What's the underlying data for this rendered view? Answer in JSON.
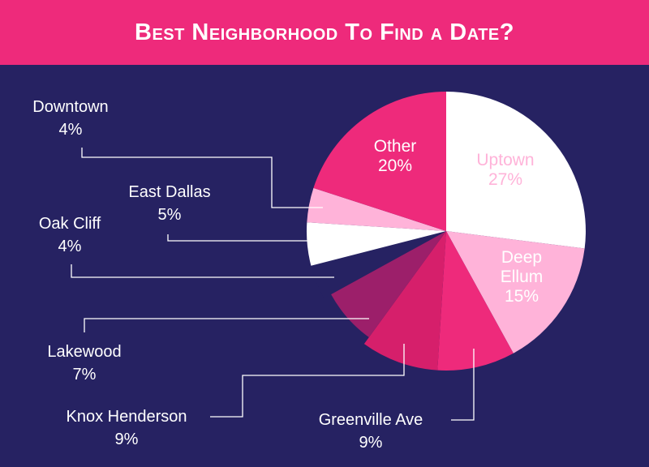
{
  "title": "Best Neighborhood To Find a Date?",
  "chart_data": {
    "type": "pie",
    "title": "Best Neighborhood To Find a Date?",
    "slices": [
      {
        "label": "Uptown",
        "value": 27,
        "value_label": "27%",
        "color": "#ffffff",
        "text_color": "#ffb3d9",
        "lines": [
          "Uptown",
          "27%"
        ]
      },
      {
        "label": "Deep Ellum",
        "value": 15,
        "value_label": "15%",
        "color": "#ffb3d9",
        "text_color": "#ffffff",
        "lines": [
          "Deep",
          "Ellum",
          "15%"
        ]
      },
      {
        "label": "Greenville Ave",
        "value": 9,
        "value_label": "9%",
        "color": "#ee2a7b",
        "text_color": "#ffffff",
        "lines": [
          "Greenville Ave",
          "9%"
        ]
      },
      {
        "label": "Knox Henderson",
        "value": 9,
        "value_label": "9%",
        "color": "#d61f6b",
        "text_color": "#ffffff",
        "lines": [
          "Knox Henderson",
          "9%"
        ]
      },
      {
        "label": "Lakewood",
        "value": 7,
        "value_label": "7%",
        "color": "#9c1f6a",
        "text_color": "#ffffff",
        "lines": [
          "Lakewood",
          "7%"
        ]
      },
      {
        "label": "Oak Cliff",
        "value": 4,
        "value_label": "4%",
        "color": "#262262",
        "text_color": "#ffffff",
        "lines": [
          "Oak Cliff",
          "4%"
        ]
      },
      {
        "label": "East Dallas",
        "value": 5,
        "value_label": "5%",
        "color": "#ffffff",
        "text_color": "#ffffff",
        "lines": [
          "East Dallas",
          "5%"
        ]
      },
      {
        "label": "Downtown",
        "value": 4,
        "value_label": "4%",
        "color": "#ffb3d9",
        "text_color": "#ffffff",
        "lines": [
          "Downtown",
          "4%"
        ]
      },
      {
        "label": "Other",
        "value": 20,
        "value_label": "20%",
        "color": "#ee2a7b",
        "text_color": "#ffffff",
        "lines": [
          "Other",
          "20%"
        ]
      }
    ]
  }
}
